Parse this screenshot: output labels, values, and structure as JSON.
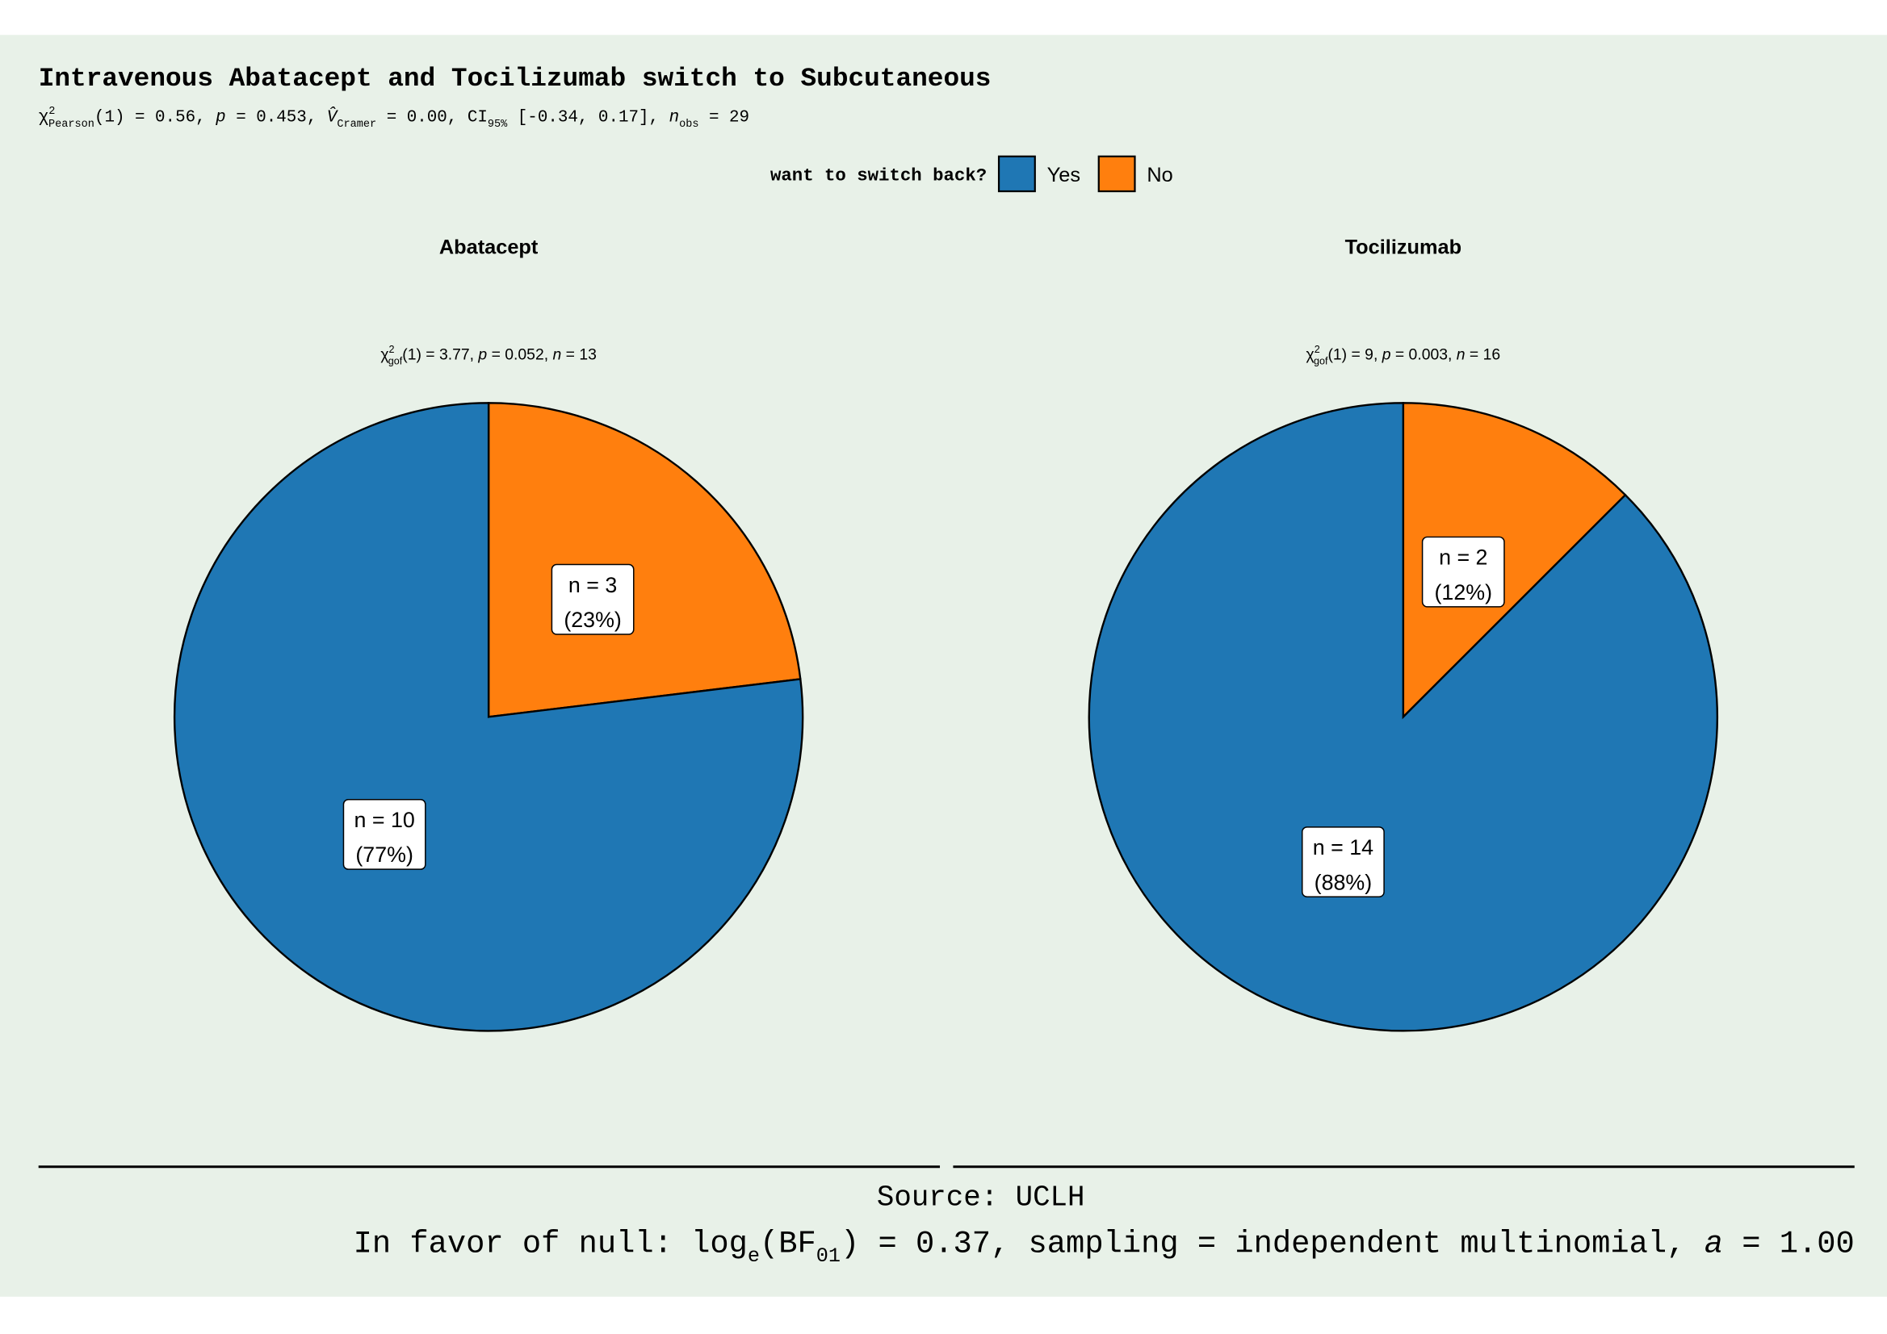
{
  "title": "Intravenous Abatacept and Tocilizumab switch to Subcutaneous",
  "subtitle_parts": [
    {
      "t": "χ"
    },
    {
      "t": "2",
      "s": "sup"
    },
    {
      "t": "Pearson",
      "s": "sub"
    },
    {
      "t": "(1) = 0.56, "
    },
    {
      "t": "p",
      "s": "i"
    },
    {
      "t": " = 0.453, "
    },
    {
      "t": "V̂",
      "s": "i"
    },
    {
      "t": "Cramer",
      "s": "sub"
    },
    {
      "t": " = 0.00, CI"
    },
    {
      "t": "95%",
      "s": "sub"
    },
    {
      "t": " [-0.34, 0.17], "
    },
    {
      "t": "n",
      "s": "i"
    },
    {
      "t": "obs",
      "s": "sub"
    },
    {
      "t": " = 29"
    }
  ],
  "legend": {
    "title": "want to switch back?",
    "items": [
      {
        "label": "Yes",
        "color": "#1F77B4"
      },
      {
        "label": "No",
        "color": "#FF7F0E"
      }
    ],
    "position": "top"
  },
  "chart_data": [
    {
      "type": "pie",
      "title": "Abatacept",
      "subtitle_parts": [
        {
          "t": "χ"
        },
        {
          "t": "2",
          "s": "sup"
        },
        {
          "t": "gof",
          "s": "sub"
        },
        {
          "t": "(1) = 3.77,  "
        },
        {
          "t": "p",
          "s": "i"
        },
        {
          "t": " = 0.052,  "
        },
        {
          "t": "n",
          "s": "i"
        },
        {
          "t": " = 13"
        }
      ],
      "slices": [
        {
          "category": "No",
          "n": 3,
          "percent": 23,
          "color": "#FF7F0E",
          "label_line1": "n = 3",
          "label_line2": "(23%)"
        },
        {
          "category": "Yes",
          "n": 10,
          "percent": 77,
          "color": "#1F77B4",
          "label_line1": "n = 10",
          "label_line2": "(77%)"
        }
      ]
    },
    {
      "type": "pie",
      "title": "Tocilizumab",
      "subtitle_parts": [
        {
          "t": "χ"
        },
        {
          "t": "2",
          "s": "sup"
        },
        {
          "t": "gof",
          "s": "sub"
        },
        {
          "t": "(1) = 9,  "
        },
        {
          "t": "p",
          "s": "i"
        },
        {
          "t": " = 0.003,  "
        },
        {
          "t": "n",
          "s": "i"
        },
        {
          "t": " = 16"
        }
      ],
      "slices": [
        {
          "category": "No",
          "n": 2,
          "percent": 12,
          "color": "#FF7F0E",
          "label_line1": "n = 2",
          "label_line2": "(12%)"
        },
        {
          "category": "Yes",
          "n": 14,
          "percent": 88,
          "color": "#1F77B4",
          "label_line1": "n = 14",
          "label_line2": "(88%)"
        }
      ]
    }
  ],
  "caption": {
    "source": "Source: UCLH",
    "bf_parts": [
      {
        "t": "In favor of null: log"
      },
      {
        "t": "e",
        "s": "sub"
      },
      {
        "t": "(BF"
      },
      {
        "t": "01",
        "s": "sub"
      },
      {
        "t": ") = 0.37, sampling = independent multinomial, "
      },
      {
        "t": "a",
        "s": "i"
      },
      {
        "t": " = 1.00"
      }
    ]
  },
  "colors": {
    "background": "#E8F1E8",
    "outline": "#000000"
  }
}
